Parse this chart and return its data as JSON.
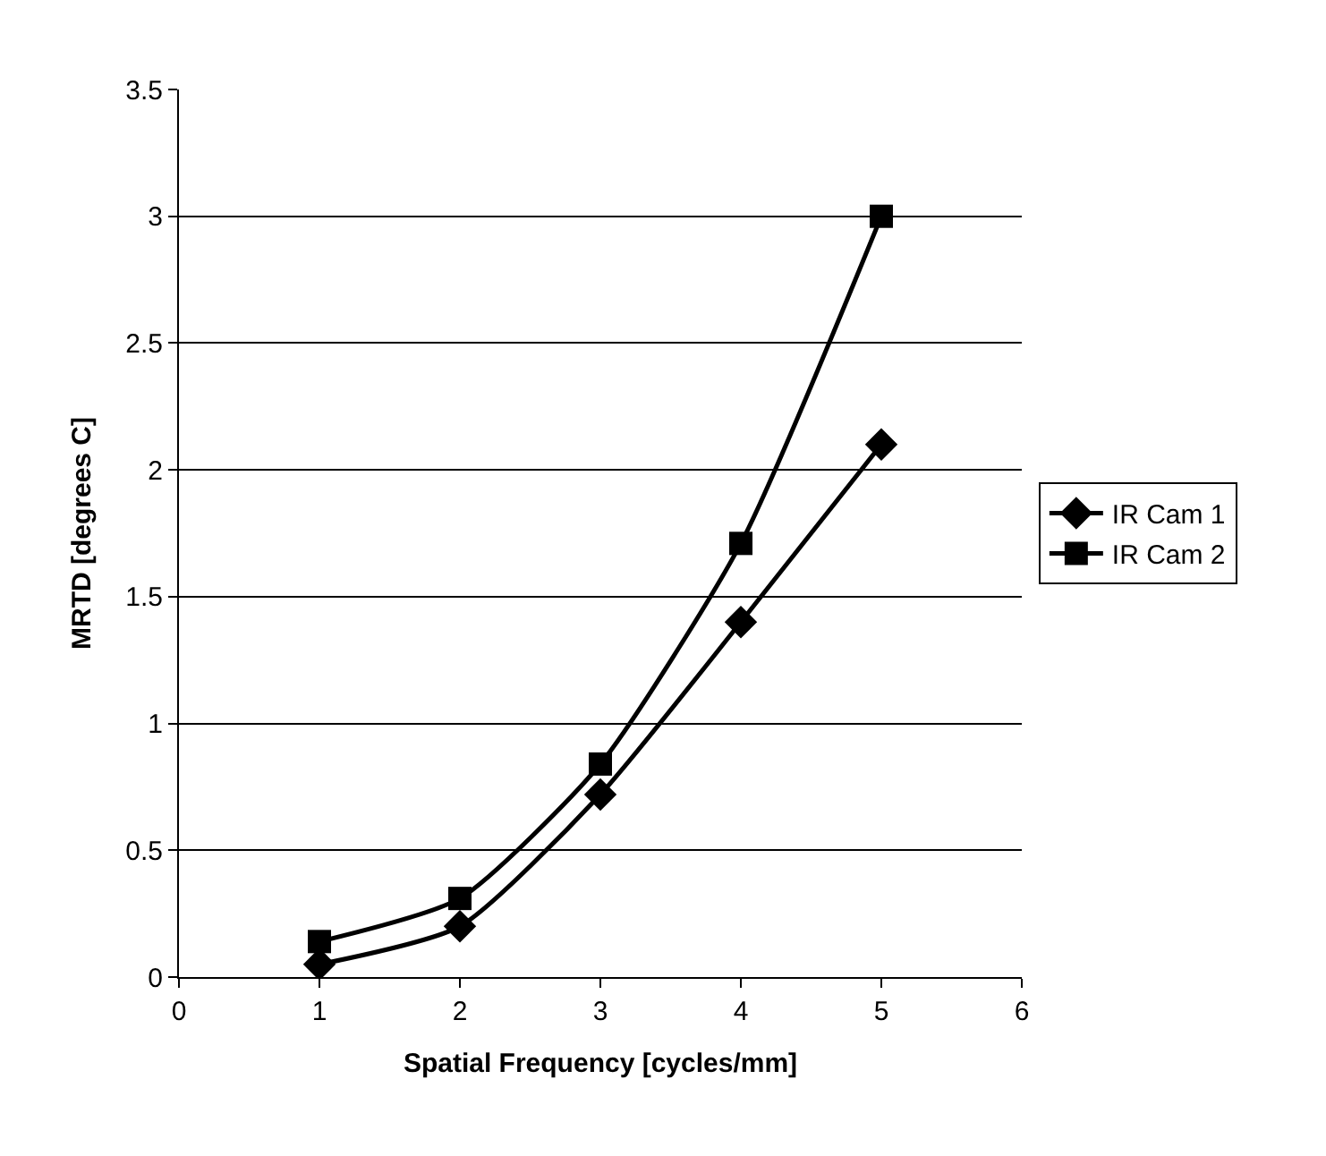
{
  "chart_data": {
    "type": "line",
    "xlabel": "Spatial Frequency [cycles/mm]",
    "ylabel": "MRTD [degrees C]",
    "x": [
      1,
      2,
      3,
      4,
      5
    ],
    "series": [
      {
        "name": "IR Cam 1",
        "color": "#000000",
        "values": [
          0.05,
          0.2,
          0.72,
          1.4,
          2.1
        ],
        "marker": "diamond"
      },
      {
        "name": "IR Cam 2",
        "color": "#000000",
        "values": [
          0.14,
          0.31,
          0.84,
          1.71,
          3.0
        ],
        "marker": "square"
      }
    ],
    "xlim": [
      0,
      6
    ],
    "xticks": [
      0,
      1,
      2,
      3,
      4,
      5,
      6
    ],
    "ylim": [
      0,
      3.5
    ],
    "yticks": [
      0,
      0.5,
      1,
      1.5,
      2,
      2.5,
      3,
      3.5
    ],
    "grid": "y",
    "legend": "right",
    "line_style": "solid"
  }
}
